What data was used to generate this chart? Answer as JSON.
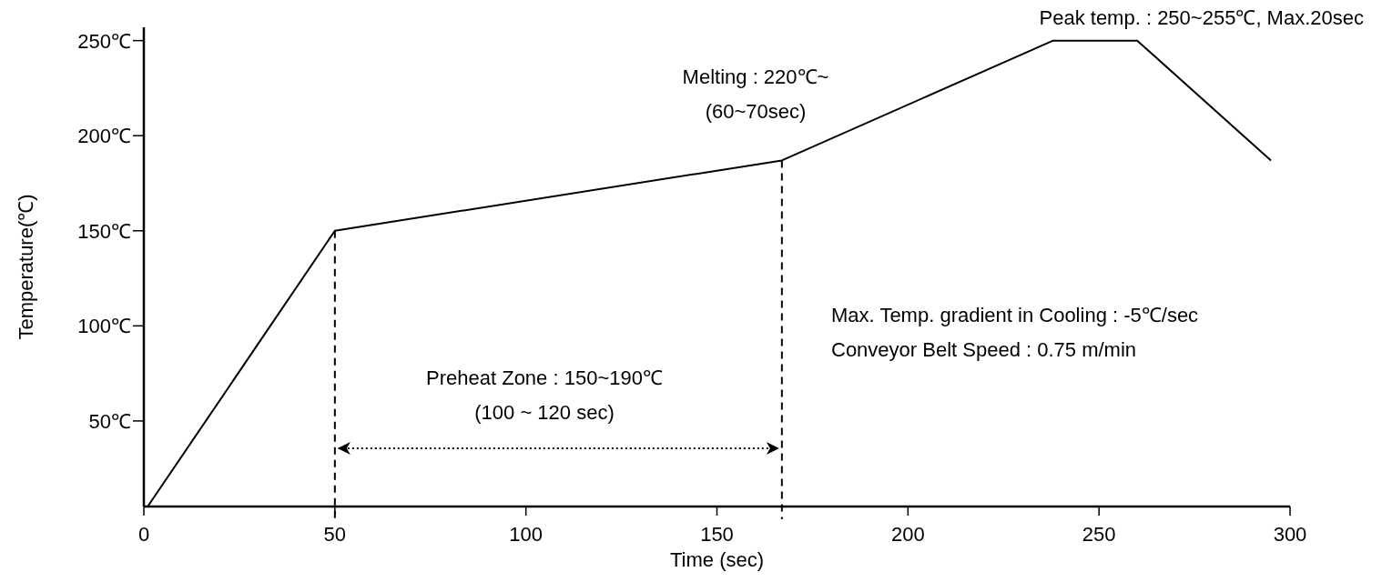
{
  "chart_data": {
    "type": "line",
    "xlabel": "Time (sec)",
    "ylabel": "Temperature(℃)",
    "x": [
      1,
      50,
      167,
      238,
      260,
      295
    ],
    "series": [
      {
        "color": "#000000",
        "values": [
          5,
          150,
          187,
          250,
          250,
          187
        ]
      }
    ],
    "xlim": [
      0,
      300
    ],
    "xticks": [
      0,
      50,
      100,
      150,
      200,
      250,
      300
    ],
    "ylim": [
      5,
      257
    ],
    "yticks": [
      {
        "value": 50,
        "label": "50℃"
      },
      {
        "value": 100,
        "label": "100℃"
      },
      {
        "value": 150,
        "label": "150℃"
      },
      {
        "value": 200,
        "label": "200℃"
      },
      {
        "value": 250,
        "label": "250℃"
      }
    ],
    "ref_lines": [
      {
        "axis": "x",
        "value": 50,
        "line_style": "dashed",
        "color": "#000000"
      },
      {
        "axis": "x",
        "value": 167,
        "line_style": "dashed",
        "color": "#000000"
      }
    ],
    "annotations": [
      "Peak temp. : 250~255℃, Max.20sec",
      "Melting : 220℃~\n(60~70sec)",
      "Preheat Zone : 150~190℃\n(100 ~ 120 sec)",
      "Max. Temp. gradient in Cooling : -5℃/sec\nConveyor Belt Speed : 0.75 m/min"
    ],
    "grid": false,
    "line_style": "solid"
  }
}
